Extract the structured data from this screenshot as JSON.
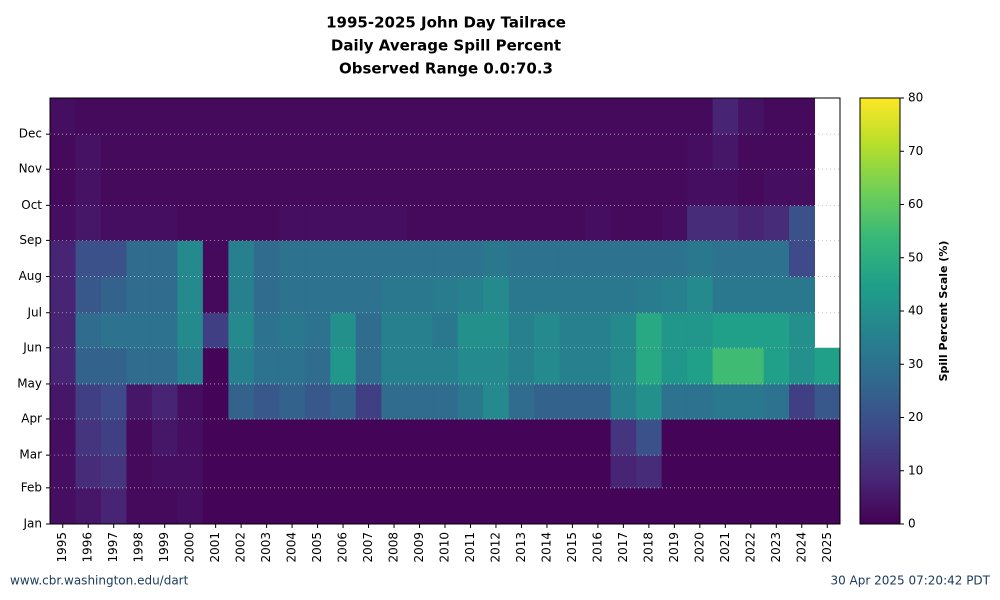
{
  "chart_data": {
    "type": "heatmap",
    "title": [
      "1995-2025 John Day Tailrace",
      "Daily Average Spill Percent",
      "Observed Range 0.0:70.3"
    ],
    "x": [
      "1995",
      "1996",
      "1997",
      "1998",
      "1999",
      "2000",
      "2001",
      "2002",
      "2003",
      "2004",
      "2005",
      "2006",
      "2007",
      "2008",
      "2009",
      "2010",
      "2011",
      "2012",
      "2013",
      "2014",
      "2015",
      "2016",
      "2017",
      "2018",
      "2019",
      "2020",
      "2021",
      "2022",
      "2023",
      "2024",
      "2025"
    ],
    "ylim": [
      0,
      365
    ],
    "yticks": [
      {
        "value": 0,
        "label": "Jan"
      },
      {
        "value": 31,
        "label": "Feb"
      },
      {
        "value": 59,
        "label": "Mar"
      },
      {
        "value": 90,
        "label": "Apr"
      },
      {
        "value": 120,
        "label": "May"
      },
      {
        "value": 151,
        "label": "Jun"
      },
      {
        "value": 181,
        "label": "Jul"
      },
      {
        "value": 212,
        "label": "Aug"
      },
      {
        "value": 243,
        "label": "Sep"
      },
      {
        "value": 273,
        "label": "Oct"
      },
      {
        "value": 304,
        "label": "Nov"
      },
      {
        "value": 334,
        "label": "Dec"
      }
    ],
    "z": [
      [
        3,
        3,
        3,
        5,
        8,
        8,
        8,
        8,
        3,
        2,
        2,
        3
      ],
      [
        5,
        10,
        12,
        15,
        25,
        28,
        22,
        20,
        5,
        4,
        4,
        2
      ],
      [
        8,
        12,
        15,
        18,
        25,
        30,
        25,
        20,
        3,
        2,
        2,
        2
      ],
      [
        2,
        2,
        2,
        5,
        28,
        30,
        28,
        28,
        3,
        2,
        2,
        2
      ],
      [
        2,
        3,
        5,
        8,
        28,
        30,
        28,
        28,
        3,
        2,
        2,
        2
      ],
      [
        3,
        3,
        3,
        3,
        35,
        38,
        38,
        38,
        2,
        2,
        2,
        2
      ],
      [
        1,
        1,
        1,
        1,
        1,
        15,
        2,
        2,
        2,
        2,
        2,
        2
      ],
      [
        1,
        1,
        1,
        25,
        35,
        38,
        35,
        35,
        2,
        2,
        2,
        2
      ],
      [
        1,
        1,
        1,
        22,
        30,
        30,
        28,
        28,
        2,
        2,
        2,
        2
      ],
      [
        1,
        1,
        1,
        25,
        30,
        32,
        30,
        30,
        3,
        2,
        2,
        2
      ],
      [
        1,
        1,
        1,
        22,
        28,
        30,
        30,
        30,
        3,
        2,
        2,
        2
      ],
      [
        1,
        1,
        1,
        25,
        42,
        40,
        30,
        30,
        3,
        2,
        2,
        2
      ],
      [
        1,
        1,
        1,
        15,
        28,
        28,
        30,
        30,
        3,
        2,
        2,
        2
      ],
      [
        1,
        1,
        1,
        28,
        35,
        35,
        32,
        30,
        3,
        2,
        2,
        2
      ],
      [
        1,
        1,
        1,
        28,
        35,
        35,
        32,
        30,
        2,
        2,
        2,
        2
      ],
      [
        1,
        1,
        1,
        28,
        35,
        32,
        33,
        30,
        2,
        2,
        2,
        2
      ],
      [
        1,
        1,
        1,
        32,
        38,
        40,
        35,
        30,
        2,
        2,
        2,
        2
      ],
      [
        1,
        1,
        1,
        38,
        38,
        40,
        38,
        32,
        2,
        2,
        2,
        2
      ],
      [
        1,
        1,
        1,
        28,
        35,
        35,
        32,
        30,
        2,
        2,
        2,
        2
      ],
      [
        1,
        1,
        1,
        25,
        38,
        38,
        32,
        30,
        2,
        2,
        2,
        2
      ],
      [
        1,
        1,
        1,
        25,
        35,
        35,
        32,
        30,
        2,
        2,
        2,
        2
      ],
      [
        1,
        1,
        1,
        25,
        35,
        35,
        32,
        30,
        3,
        2,
        2,
        2
      ],
      [
        1,
        8,
        12,
        35,
        38,
        38,
        32,
        30,
        2,
        2,
        2,
        2
      ],
      [
        1,
        10,
        20,
        40,
        48,
        48,
        33,
        30,
        2,
        2,
        2,
        2
      ],
      [
        1,
        1,
        1,
        30,
        42,
        42,
        35,
        30,
        3,
        2,
        2,
        2
      ],
      [
        1,
        1,
        1,
        30,
        45,
        42,
        38,
        32,
        10,
        3,
        3,
        2
      ],
      [
        1,
        1,
        1,
        32,
        55,
        45,
        32,
        30,
        10,
        3,
        5,
        8
      ],
      [
        1,
        1,
        1,
        32,
        55,
        45,
        32,
        30,
        8,
        2,
        2,
        4
      ],
      [
        1,
        1,
        1,
        30,
        45,
        45,
        32,
        30,
        10,
        3,
        2,
        2
      ],
      [
        1,
        1,
        1,
        15,
        40,
        40,
        32,
        18,
        20,
        3,
        2,
        2
      ],
      [
        1,
        1,
        1,
        22,
        45,
        null,
        null,
        null,
        null,
        null,
        null,
        null
      ]
    ],
    "colormap": "viridis",
    "zlim": [
      0,
      80
    ],
    "zticks": [
      0,
      10,
      20,
      30,
      40,
      50,
      60,
      70,
      80
    ],
    "colorbar_label": "Spill Percent Scale (%)",
    "footer_left": "www.cbr.washington.edu/dart",
    "footer_right": "30 Apr 2025 07:20:42 PDT"
  }
}
